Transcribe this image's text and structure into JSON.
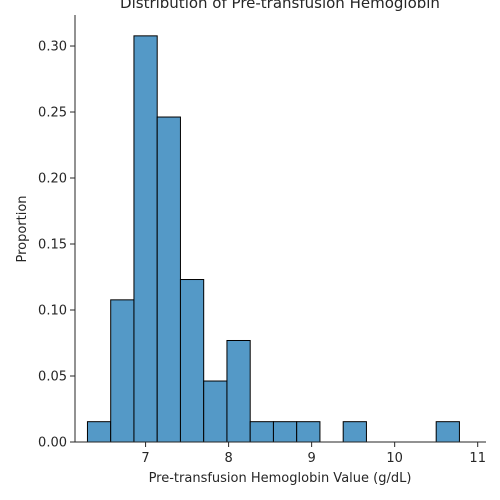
{
  "chart_data": {
    "type": "bar",
    "title": "Distribution of Pre-transfusion Hemoglobin",
    "xlabel": "Pre-transfusion Hemoglobin Value (g/dL)",
    "ylabel": "Proportion",
    "xlim": [
      6.15,
      11.1
    ],
    "ylim": [
      0,
      0.3235
    ],
    "xticks": [
      7,
      8,
      9,
      10,
      11
    ],
    "xtick_labels": [
      "7",
      "8",
      "9",
      "10",
      "11"
    ],
    "yticks": [
      0.0,
      0.05,
      0.1,
      0.15,
      0.2,
      0.25,
      0.3
    ],
    "ytick_labels": [
      "0.00",
      "0.05",
      "0.10",
      "0.15",
      "0.20",
      "0.25",
      "0.30"
    ],
    "bins": [
      {
        "x0": 6.3,
        "x1": 6.58,
        "value": 0.0154
      },
      {
        "x0": 6.58,
        "x1": 6.86,
        "value": 0.1077
      },
      {
        "x0": 6.86,
        "x1": 7.14,
        "value": 0.3077
      },
      {
        "x0": 7.14,
        "x1": 7.42,
        "value": 0.2462
      },
      {
        "x0": 7.42,
        "x1": 7.7,
        "value": 0.1231
      },
      {
        "x0": 7.7,
        "x1": 7.98,
        "value": 0.0462
      },
      {
        "x0": 7.98,
        "x1": 8.26,
        "value": 0.0769
      },
      {
        "x0": 8.26,
        "x1": 8.54,
        "value": 0.0154
      },
      {
        "x0": 8.54,
        "x1": 8.82,
        "value": 0.0154
      },
      {
        "x0": 8.82,
        "x1": 9.1,
        "value": 0.0154
      },
      {
        "x0": 9.1,
        "x1": 9.38,
        "value": 0.0
      },
      {
        "x0": 9.38,
        "x1": 9.66,
        "value": 0.0154
      },
      {
        "x0": 9.66,
        "x1": 9.94,
        "value": 0.0
      },
      {
        "x0": 9.94,
        "x1": 10.22,
        "value": 0.0
      },
      {
        "x0": 10.22,
        "x1": 10.5,
        "value": 0.0
      },
      {
        "x0": 10.5,
        "x1": 10.78,
        "value": 0.0154
      }
    ],
    "bar_color": "#5499c7",
    "edge_color": "#000000",
    "grid": false,
    "spines": [
      "left",
      "bottom"
    ]
  }
}
